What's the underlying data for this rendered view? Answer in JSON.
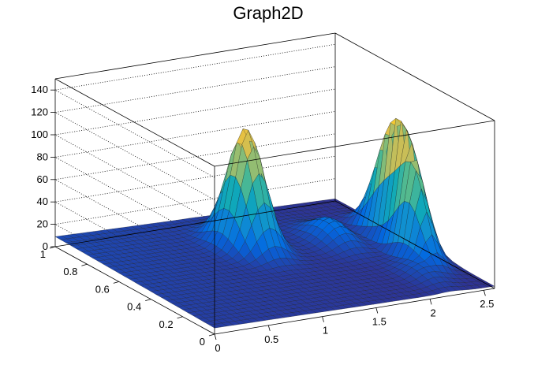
{
  "chart_data": {
    "type": "surface",
    "title": "Graph2D",
    "x_axis": {
      "range": [
        0,
        2.6
      ],
      "ticks": [
        "0",
        "0.5",
        "1",
        "1.5",
        "2",
        "2.5"
      ],
      "tick_values": [
        0,
        0.5,
        1,
        1.5,
        2,
        2.5
      ]
    },
    "y_axis": {
      "range": [
        0,
        1.0
      ],
      "ticks": [
        "0",
        "0.2",
        "0.4",
        "0.6",
        "0.8",
        "1"
      ],
      "tick_values": [
        0,
        0.2,
        0.4,
        0.6,
        0.8,
        1.0
      ]
    },
    "z_axis": {
      "range": [
        0,
        150
      ],
      "ticks": [
        "0",
        "20",
        "40",
        "60",
        "80",
        "100",
        "120",
        "140"
      ],
      "tick_values": [
        0,
        20,
        40,
        60,
        80,
        100,
        120,
        140
      ]
    },
    "grid": true,
    "palette": "kBird",
    "colors": [
      "#352a87",
      "#0268e1",
      "#108ed2",
      "#0fa9b8",
      "#5bbc8a",
      "#b8bd62",
      "#f3c23a",
      "#f9fb0e"
    ],
    "peaks": [
      {
        "x": 1.3,
        "y": 0.68,
        "z": 108
      },
      {
        "x": 2.45,
        "y": 0.5,
        "z": 120
      },
      {
        "x": 2.35,
        "y": 0.34,
        "z": 62
      }
    ]
  }
}
